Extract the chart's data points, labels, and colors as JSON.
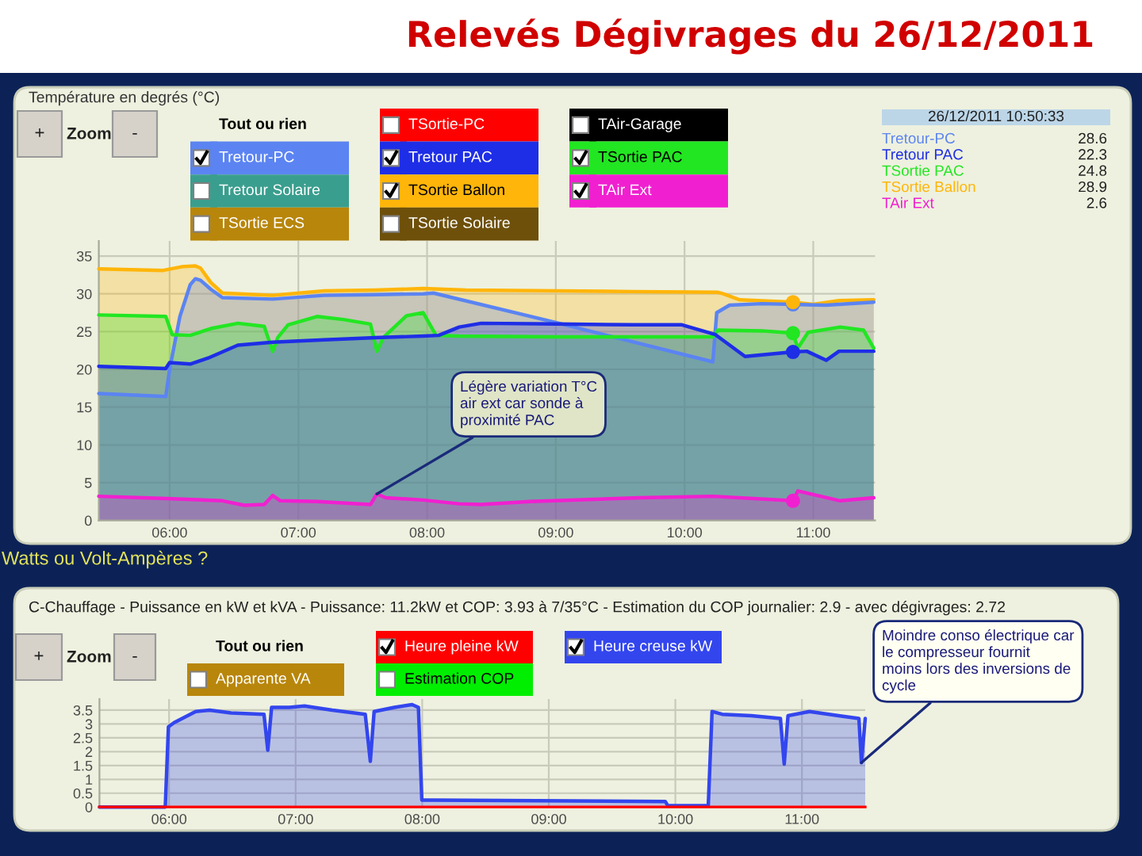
{
  "chart_data": [
    {
      "type": "area",
      "title": "Relevés Dégivrages du 26/12/2011",
      "ylabel": "Température en degrés (°C)",
      "legend_title": "Tout ou rien",
      "legend": "top",
      "grid": true,
      "xlim": [
        5.45,
        11.48
      ],
      "xticks": [
        {
          "value": 6,
          "label": "06:00"
        },
        {
          "value": 7,
          "label": "07:00"
        },
        {
          "value": 8,
          "label": "08:00"
        },
        {
          "value": 9,
          "label": "09:00"
        },
        {
          "value": 10,
          "label": "10:00"
        },
        {
          "value": 11,
          "label": "11:00"
        }
      ],
      "ylim": [
        0,
        37
      ],
      "yticks": [
        0,
        5,
        10,
        15,
        20,
        25,
        30,
        35
      ],
      "series": [
        {
          "name": "TSortie-PC",
          "color": "#ff0000"
        },
        {
          "name": "TAir-Garage",
          "color": "#000000"
        },
        {
          "name": "Tretour-PC",
          "color": "#5b84f2",
          "x": [
            5.45,
            5.97,
            6.0,
            6.08,
            6.16,
            6.2,
            6.24,
            6.32,
            6.41,
            6.8,
            7.2,
            7.6,
            7.97,
            8.05,
            9.0,
            10.22,
            10.25,
            10.35,
            10.6,
            10.8425,
            11.1,
            11.47
          ],
          "values": [
            16.8,
            16.4,
            20.0,
            27.0,
            31.2,
            32.0,
            31.8,
            30.6,
            29.5,
            29.3,
            29.8,
            29.9,
            30.0,
            30.1,
            26.2,
            21.0,
            27.5,
            28.5,
            28.7,
            28.6,
            28.5,
            28.9
          ]
        },
        {
          "name": "Tretour PAC",
          "color": "#1e2ee6",
          "x": [
            5.45,
            5.97,
            6.0,
            6.16,
            6.3,
            6.53,
            6.8,
            7.2,
            7.6,
            7.97,
            8.09,
            8.25,
            8.42,
            9.0,
            9.6,
            9.98,
            10.24,
            10.47,
            10.8425,
            10.95,
            11.1,
            11.2,
            11.47
          ],
          "values": [
            20.4,
            20.1,
            20.9,
            20.7,
            21.5,
            23.2,
            23.6,
            23.9,
            24.2,
            24.4,
            24.5,
            25.6,
            26.1,
            26.0,
            25.9,
            25.9,
            24.6,
            21.7,
            22.3,
            22.4,
            21.2,
            22.4,
            22.4
          ]
        },
        {
          "name": "TSortie PAC",
          "color": "#22e622",
          "x": [
            5.45,
            5.97,
            6.02,
            6.16,
            6.32,
            6.53,
            6.735,
            6.8,
            6.84,
            6.92,
            7.145,
            7.35,
            7.56,
            7.61,
            7.66,
            7.84,
            7.97,
            8.07,
            8.25,
            9.0,
            10.22,
            10.26,
            10.6,
            10.8425,
            10.88,
            10.96,
            11.21,
            11.39,
            11.47
          ],
          "values": [
            27.2,
            27.0,
            24.6,
            24.5,
            25.4,
            26.1,
            25.7,
            22.4,
            24.2,
            25.9,
            27.0,
            26.6,
            26.0,
            22.4,
            24.2,
            27.1,
            27.5,
            24.5,
            24.4,
            24.3,
            24.3,
            25.2,
            25.1,
            24.8,
            22.8,
            24.9,
            25.6,
            25.2,
            22.8
          ]
        },
        {
          "name": "Tretour Solaire",
          "color": "#3a9e8e"
        },
        {
          "name": "TSortie Ballon",
          "color": "#ffb50a",
          "x": [
            5.45,
            5.95,
            6.1,
            6.2,
            6.24,
            6.32,
            6.41,
            6.8,
            7.2,
            7.6,
            7.97,
            8.3,
            9.0,
            9.6,
            10.26,
            10.3,
            10.43,
            10.8425,
            11.0,
            11.2,
            11.47
          ],
          "values": [
            33.3,
            33.1,
            33.6,
            33.7,
            33.4,
            31.5,
            30.1,
            29.8,
            30.4,
            30.5,
            30.7,
            30.5,
            30.4,
            30.3,
            30.2,
            30.0,
            29.2,
            28.9,
            28.6,
            29.1,
            29.2
          ]
        },
        {
          "name": "TAir Ext",
          "color": "#f020d0",
          "x": [
            5.45,
            5.975,
            6.41,
            6.58,
            6.735,
            6.8,
            6.86,
            7.145,
            7.56,
            7.61,
            7.68,
            7.97,
            8.25,
            8.42,
            8.8,
            9.65,
            10.22,
            10.8425,
            10.88,
            11.21,
            11.47
          ],
          "values": [
            3.2,
            2.9,
            2.6,
            2.0,
            2.1,
            3.3,
            2.6,
            2.5,
            2.1,
            3.5,
            3.0,
            2.7,
            2.2,
            2.1,
            2.5,
            3.0,
            3.2,
            2.6,
            3.9,
            2.6,
            3.0
          ]
        },
        {
          "name": "TSortie ECS",
          "color": "#b8860b"
        },
        {
          "name": "TSortie Solaire",
          "color": "#6e500a"
        },
        {
          "type": "scatter",
          "x": [
            10.8425,
            10.8425,
            10.8425,
            10.8425,
            10.8425
          ],
          "values": [
            28.6,
            22.3,
            24.8,
            28.9,
            2.6
          ],
          "colors": [
            "#5b84f2",
            "#1e2ee6",
            "#22e622",
            "#ffb50a",
            "#f020d0"
          ]
        }
      ],
      "annotations": [
        "+",
        "Zoom",
        "-",
        {
          "text": "Légère variation T°C\nair ext car sonde à\nproximité PAC",
          "x": 7.61,
          "y": 3.5
        }
      ]
    },
    {
      "type": "other",
      "title": "26/12/2011 10:50:33",
      "categories": [
        "Tretour-PC",
        "Tretour PAC",
        "TSortie PAC",
        "TSortie Ballon",
        "TAir Ext"
      ],
      "values": [
        28.6,
        22.3,
        24.8,
        28.9,
        2.6
      ],
      "colors": [
        "#5b84f2",
        "#1e2ee6",
        "#22e622",
        "#ffb50a",
        "#f020d0"
      ],
      "data_labels": true
    },
    {
      "type": "area",
      "title": "Watts ou Volt-Ampères ?",
      "subtitle": "C-Chauffage - Puissance en kW et kVA - Puissance: 11.2kW et COP: 3.93 à 7/35°C - Estimation du COP journalier: 2.9 - avec dégivrages: 2.72",
      "legend_title": "Tout ou rien",
      "legend": "top",
      "grid": true,
      "xlim": [
        5.45,
        11.5
      ],
      "xticks": [
        {
          "value": 6,
          "label": "06:00"
        },
        {
          "value": 7,
          "label": "07:00"
        },
        {
          "value": 8,
          "label": "08:00"
        },
        {
          "value": 9,
          "label": "09:00"
        },
        {
          "value": 10,
          "label": "10:00"
        },
        {
          "value": 11,
          "label": "11:00"
        }
      ],
      "ylim": [
        0,
        3.9
      ],
      "yticks": [
        0,
        0.5,
        1,
        1.5,
        2,
        2.5,
        3,
        3.5
      ],
      "series": [
        {
          "name": "Heure pleine kW",
          "type": "line",
          "color": "#ff0000",
          "x": [
            5.45,
            11.5
          ],
          "values": [
            0,
            0
          ]
        },
        {
          "name": "Heure creuse kW",
          "color": "#3346ee",
          "x": [
            5.45,
            5.97,
            5.995,
            6.04,
            6.21,
            6.32,
            6.49,
            6.75,
            6.78,
            6.81,
            6.95,
            7.07,
            7.29,
            7.55,
            7.59,
            7.62,
            7.78,
            7.92,
            7.97,
            7.997,
            8.09,
            9.92,
            9.94,
            10.26,
            10.29,
            10.37,
            10.6,
            10.83,
            10.86,
            10.89,
            11.06,
            11.29,
            11.45,
            11.47,
            11.5
          ],
          "values": [
            0,
            0,
            2.9,
            3.05,
            3.45,
            3.5,
            3.4,
            3.35,
            2.05,
            3.6,
            3.6,
            3.65,
            3.5,
            3.35,
            1.65,
            3.45,
            3.6,
            3.7,
            3.6,
            0.25,
            0.25,
            0.2,
            0.05,
            0.05,
            3.45,
            3.35,
            3.3,
            3.2,
            1.55,
            3.3,
            3.45,
            3.3,
            3.2,
            1.6,
            3.2
          ]
        },
        {
          "name": "Apparente VA",
          "color": "#b8860b"
        },
        {
          "name": "Estimation COP",
          "color": "#00ee00"
        }
      ],
      "annotations": [
        "+",
        "Zoom",
        "-",
        {
          "text": "Moindre conso électrique car\nle compresseur fournit\nmoins lors des inversions de\ncycle",
          "x": 11.47,
          "y": 1.6
        }
      ]
    }
  ]
}
